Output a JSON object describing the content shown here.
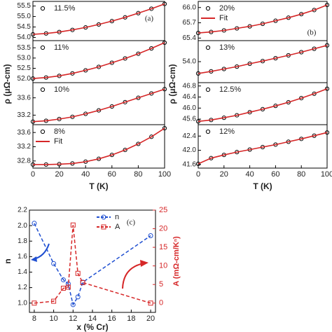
{
  "chart_data": [
    {
      "type": "scatter",
      "x": [
        0,
        10,
        20,
        30,
        40,
        50,
        60,
        70,
        80,
        90,
        100
      ],
      "xlim": [
        0,
        100
      ],
      "ylim": [
        53.85,
        55.72
      ],
      "yticks": [
        {
          "value": 54,
          "label": "54.0"
        },
        54.5,
        {
          "value": 55,
          "label": "55.0"
        },
        55.5
      ],
      "annotation": "(a)",
      "series": [
        {
          "name": "11.5%",
          "style": "markers",
          "color": "#000000",
          "values": [
            54.15,
            54.19,
            54.26,
            54.36,
            54.48,
            54.62,
            54.78,
            54.96,
            55.16,
            55.37,
            55.6
          ]
        },
        {
          "style": "line",
          "color": "#d62728",
          "values": [
            54.15,
            54.19,
            54.26,
            54.36,
            54.48,
            54.62,
            54.78,
            54.96,
            55.16,
            55.37,
            55.6
          ]
        }
      ]
    },
    {
      "type": "scatter",
      "x": [
        0,
        10,
        20,
        30,
        40,
        50,
        60,
        70,
        80,
        90,
        100
      ],
      "xlim": [
        0,
        100
      ],
      "ylim": [
        51.8,
        53.85
      ],
      "yticks": [
        {
          "value": 52,
          "label": "52.0"
        },
        52.5,
        {
          "value": 53,
          "label": "53.0"
        },
        53.5
      ],
      "ylabel": "ρ (μΩ-cm)",
      "series": [
        {
          "name": "11%",
          "style": "markers",
          "color": "#000000",
          "values": [
            52.0,
            52.05,
            52.13,
            52.25,
            52.4,
            52.57,
            52.77,
            52.98,
            53.21,
            53.47,
            53.75
          ]
        },
        {
          "style": "line",
          "color": "#d62728",
          "values": [
            52.0,
            52.05,
            52.13,
            52.25,
            52.4,
            52.57,
            52.77,
            52.98,
            53.21,
            53.47,
            53.75
          ]
        }
      ]
    },
    {
      "type": "scatter",
      "x": [
        0,
        10,
        20,
        30,
        40,
        50,
        60,
        70,
        80,
        90,
        100
      ],
      "xlim": [
        0,
        100
      ],
      "ylim": [
        32.98,
        33.95
      ],
      "yticks": [
        33.2,
        33.6
      ],
      "series": [
        {
          "name": "10%",
          "style": "markers",
          "color": "#000000",
          "values": [
            33.05,
            33.07,
            33.11,
            33.16,
            33.23,
            33.31,
            33.4,
            33.5,
            33.6,
            33.7,
            33.8
          ]
        },
        {
          "style": "line",
          "color": "#d62728",
          "values": [
            33.05,
            33.07,
            33.11,
            33.16,
            33.23,
            33.31,
            33.4,
            33.5,
            33.6,
            33.7,
            33.8
          ]
        }
      ]
    },
    {
      "type": "scatter",
      "x": [
        0,
        10,
        20,
        30,
        40,
        50,
        60,
        70,
        80,
        90,
        100
      ],
      "xlim": [
        0,
        100
      ],
      "ylim": [
        32.6,
        33.82
      ],
      "yticks": [
        32.8,
        33.2,
        33.6
      ],
      "xticks": [
        0,
        20,
        40,
        60,
        80,
        100
      ],
      "xlabel": "T (K)",
      "series": [
        {
          "name": "8%",
          "style": "markers",
          "color": "#000000",
          "values": [
            32.7,
            32.7,
            32.71,
            32.73,
            32.78,
            32.86,
            32.97,
            33.11,
            33.28,
            33.48,
            33.72
          ]
        },
        {
          "name": "Fit",
          "style": "line",
          "color": "#d62728",
          "values": [
            32.7,
            32.7,
            32.71,
            32.73,
            32.78,
            32.86,
            32.97,
            33.11,
            33.28,
            33.48,
            33.72
          ]
        }
      ]
    },
    {
      "type": "scatter",
      "x": [
        0,
        10,
        20,
        30,
        40,
        50,
        60,
        70,
        80,
        90,
        100
      ],
      "xlim": [
        0,
        100
      ],
      "ylim": [
        65.35,
        66.12
      ],
      "yticks": [
        {
          "value": 65.4,
          "label": "65.4"
        },
        65.7,
        {
          "value": 66,
          "label": "66.0"
        }
      ],
      "annotation": "(b)",
      "series": [
        {
          "name": "20%",
          "style": "markers",
          "color": "#000000",
          "values": [
            65.5,
            65.52,
            65.55,
            65.59,
            65.63,
            65.68,
            65.74,
            65.8,
            65.87,
            65.95,
            66.05
          ]
        },
        {
          "name": "Fit",
          "style": "line",
          "color": "#d62728",
          "values": [
            65.5,
            65.52,
            65.55,
            65.59,
            65.63,
            65.68,
            65.74,
            65.8,
            65.87,
            65.95,
            66.05
          ]
        }
      ]
    },
    {
      "type": "scatter",
      "x": [
        0,
        10,
        20,
        30,
        40,
        50,
        60,
        70,
        80,
        90,
        100
      ],
      "xlim": [
        0,
        100
      ],
      "ylim": [
        53.2,
        54.8
      ],
      "yticks": [
        {
          "value": 54,
          "label": "54.0"
        }
      ],
      "ylabel": "ρ (μΩ-cm)",
      "series": [
        {
          "name": "13%",
          "style": "markers",
          "color": "#000000",
          "values": [
            53.55,
            53.63,
            53.72,
            53.81,
            53.92,
            54.02,
            54.13,
            54.24,
            54.36,
            54.49,
            54.62
          ]
        },
        {
          "style": "line",
          "color": "#d62728",
          "values": [
            53.55,
            53.63,
            53.72,
            53.81,
            53.92,
            54.02,
            54.13,
            54.24,
            54.36,
            54.49,
            54.62
          ]
        }
      ]
    },
    {
      "type": "scatter",
      "x": [
        0,
        10,
        20,
        30,
        40,
        50,
        60,
        70,
        80,
        90,
        100
      ],
      "xlim": [
        0,
        100
      ],
      "ylim": [
        45.4,
        46.92
      ],
      "yticks": [
        45.6,
        {
          "value": 46,
          "label": "46.0"
        },
        46.4,
        46.8
      ],
      "series": [
        {
          "name": "12.5%",
          "style": "markers",
          "color": "#000000",
          "values": [
            45.52,
            45.57,
            45.65,
            45.74,
            45.85,
            45.96,
            46.08,
            46.21,
            46.36,
            46.52,
            46.7
          ]
        },
        {
          "style": "line",
          "color": "#d62728",
          "values": [
            45.52,
            45.57,
            45.65,
            45.74,
            45.85,
            45.96,
            46.08,
            46.21,
            46.36,
            46.52,
            46.7
          ]
        }
      ]
    },
    {
      "type": "scatter",
      "x": [
        0,
        10,
        20,
        30,
        40,
        50,
        60,
        70,
        80,
        90,
        100
      ],
      "xlim": [
        0,
        100
      ],
      "ylim": [
        41.5,
        42.72
      ],
      "yticks": [
        41.6,
        {
          "value": 42,
          "label": "42.0"
        },
        42.4
      ],
      "xticks": [
        0,
        20,
        40,
        60,
        80,
        100
      ],
      "xlabel": "T (K)",
      "series": [
        {
          "name": "12%",
          "style": "markers",
          "color": "#000000",
          "values": [
            41.62,
            41.78,
            41.87,
            41.95,
            42.02,
            42.09,
            42.16,
            42.24,
            42.32,
            42.41,
            42.5
          ]
        },
        {
          "style": "line",
          "color": "#d62728",
          "values": [
            41.62,
            41.78,
            41.87,
            41.95,
            42.02,
            42.09,
            42.16,
            42.24,
            42.32,
            42.41,
            42.5
          ]
        }
      ]
    },
    {
      "type": "line",
      "x": [
        8,
        10,
        11,
        11.5,
        12,
        12.5,
        13,
        20
      ],
      "xlim": [
        7.5,
        20.5
      ],
      "xticks": [
        8,
        10,
        12,
        14,
        16,
        18,
        20
      ],
      "xlabel": "x (% Cr)",
      "ylabel": "n",
      "y2label": "A (mΩ-cm/Kⁿ)",
      "annotation": "(c)",
      "ylim": [
        0.88,
        2.2
      ],
      "yticks": [
        {
          "value": 1,
          "label": "1.0"
        },
        1.2,
        1.4,
        1.6,
        1.8,
        {
          "value": 2,
          "label": "2.0"
        },
        2.2
      ],
      "y2lim": [
        -2.5,
        25
      ],
      "y2ticks": [
        0,
        5,
        10,
        15,
        20,
        25
      ],
      "series": [
        {
          "name": "n",
          "style": "circles-dashed",
          "color": "#1f4fd1",
          "values": [
            2.03,
            1.51,
            1.3,
            1.25,
            0.98,
            1.08,
            1.27,
            1.87
          ]
        },
        {
          "name": "A",
          "style": "squares-dashed",
          "color": "#d62728",
          "axis": "y2",
          "values": [
            0,
            0.5,
            4,
            4.3,
            21,
            8,
            5.5,
            0
          ]
        }
      ]
    }
  ]
}
